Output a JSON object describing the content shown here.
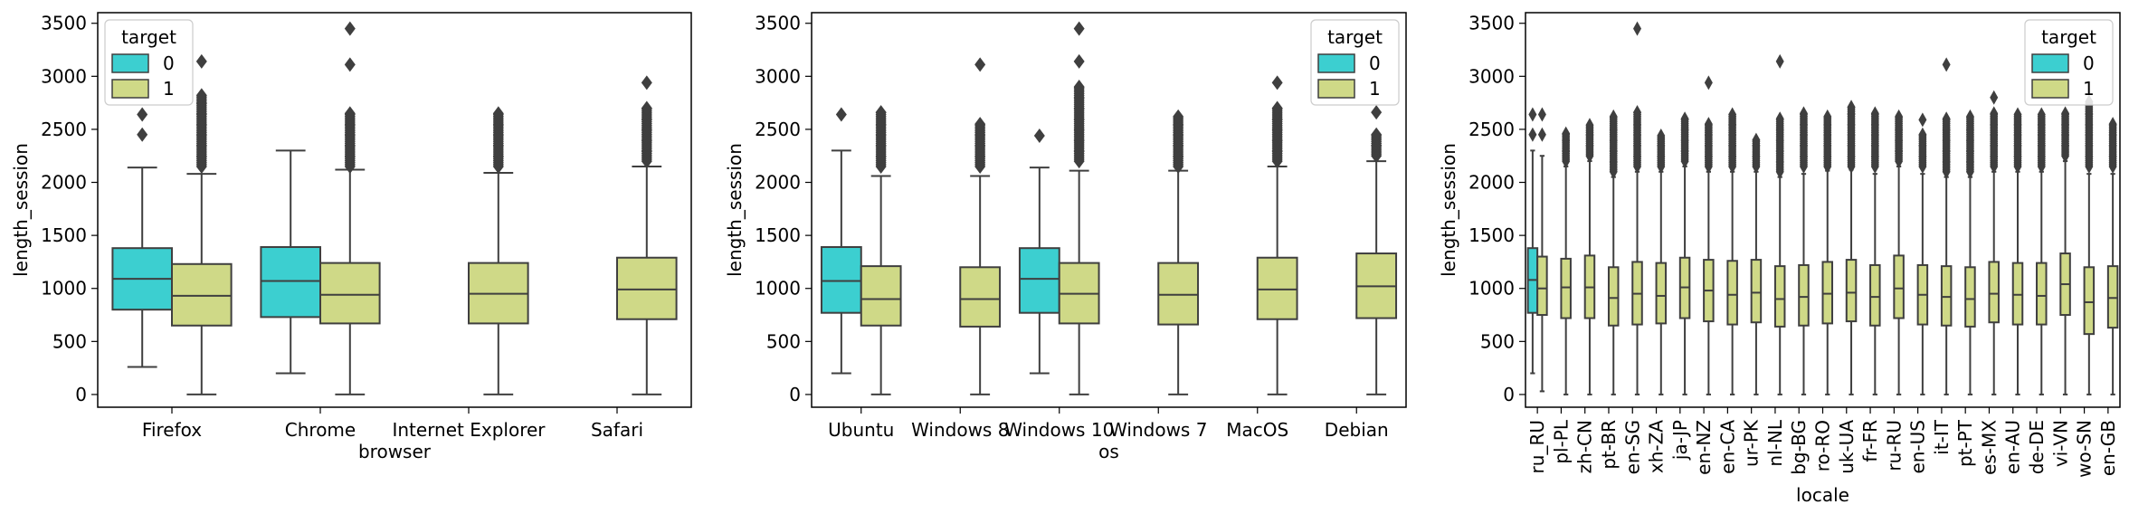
{
  "colors": {
    "0": "#3ccfd0",
    "1": "#cfd987",
    "line": "#3f3f3f"
  },
  "chart_data": [
    {
      "type": "box",
      "xlabel": "browser",
      "ylabel": "length_session",
      "ylim": [
        -120,
        3600
      ],
      "yticks": [
        0,
        500,
        1000,
        1500,
        2000,
        2500,
        3000,
        3500
      ],
      "legend": {
        "title": "target",
        "entries": [
          "0",
          "1"
        ],
        "position": "top-left"
      },
      "categories": [
        "Firefox",
        "Chrome",
        "Internet Explorer",
        "Safari"
      ],
      "boxes": [
        {
          "category": "Firefox",
          "target": "0",
          "whislo": 260,
          "q1": 800,
          "med": 1090,
          "q3": 1380,
          "whishi": 2140,
          "fliers": [
            2450,
            2640
          ]
        },
        {
          "category": "Firefox",
          "target": "1",
          "whislo": 0,
          "q1": 650,
          "med": 930,
          "q3": 1230,
          "whishi": 2080,
          "fliers": [
            2150,
            2250,
            2350,
            2450,
            2550,
            2650,
            2750,
            2820,
            3140
          ]
        },
        {
          "category": "Chrome",
          "target": "0",
          "whislo": 200,
          "q1": 730,
          "med": 1070,
          "q3": 1390,
          "whishi": 2300,
          "fliers": []
        },
        {
          "category": "Chrome",
          "target": "1",
          "whislo": 0,
          "q1": 670,
          "med": 940,
          "q3": 1240,
          "whishi": 2120,
          "fliers": [
            2150,
            2250,
            2350,
            2450,
            2550,
            2650,
            3110,
            3450
          ]
        },
        {
          "category": "Internet Explorer",
          "target": "1",
          "whislo": 0,
          "q1": 670,
          "med": 950,
          "q3": 1240,
          "whishi": 2090,
          "fliers": [
            2150,
            2250,
            2350,
            2450,
            2550,
            2650
          ]
        },
        {
          "category": "Safari",
          "target": "1",
          "whislo": 0,
          "q1": 710,
          "med": 990,
          "q3": 1290,
          "whishi": 2150,
          "fliers": [
            2200,
            2300,
            2400,
            2500,
            2600,
            2700,
            2940
          ]
        }
      ]
    },
    {
      "type": "box",
      "xlabel": "os",
      "ylabel": "length_session",
      "ylim": [
        -120,
        3600
      ],
      "yticks": [
        0,
        500,
        1000,
        1500,
        2000,
        2500,
        3000,
        3500
      ],
      "legend": {
        "title": "target",
        "entries": [
          "0",
          "1"
        ],
        "position": "top-right"
      },
      "categories": [
        "Ubuntu",
        "Windows 8",
        "Windows 10",
        "Windows 7",
        "MacOS",
        "Debian"
      ],
      "boxes": [
        {
          "category": "Ubuntu",
          "target": "0",
          "whislo": 200,
          "q1": 770,
          "med": 1070,
          "q3": 1390,
          "whishi": 2300,
          "fliers": [
            2640
          ]
        },
        {
          "category": "Ubuntu",
          "target": "1",
          "whislo": 0,
          "q1": 650,
          "med": 900,
          "q3": 1210,
          "whishi": 2060,
          "fliers": [
            2150,
            2250,
            2350,
            2450,
            2550,
            2660
          ]
        },
        {
          "category": "Windows 8",
          "target": "1",
          "whislo": 0,
          "q1": 640,
          "med": 900,
          "q3": 1200,
          "whishi": 2060,
          "fliers": [
            2150,
            2250,
            2350,
            2450,
            2550,
            3110
          ]
        },
        {
          "category": "Windows 10",
          "target": "0",
          "whislo": 200,
          "q1": 770,
          "med": 1090,
          "q3": 1380,
          "whishi": 2140,
          "fliers": [
            2440
          ]
        },
        {
          "category": "Windows 10",
          "target": "1",
          "whislo": 0,
          "q1": 670,
          "med": 950,
          "q3": 1240,
          "whishi": 2110,
          "fliers": [
            2200,
            2300,
            2400,
            2500,
            2600,
            2700,
            2800,
            2900,
            3140,
            3450
          ]
        },
        {
          "category": "Windows 7",
          "target": "1",
          "whislo": 0,
          "q1": 660,
          "med": 940,
          "q3": 1240,
          "whishi": 2110,
          "fliers": [
            2150,
            2250,
            2350,
            2450,
            2550,
            2620
          ]
        },
        {
          "category": "MacOS",
          "target": "1",
          "whislo": 0,
          "q1": 710,
          "med": 990,
          "q3": 1290,
          "whishi": 2150,
          "fliers": [
            2200,
            2300,
            2400,
            2500,
            2600,
            2700,
            2940
          ]
        },
        {
          "category": "Debian",
          "target": "1",
          "whislo": 0,
          "q1": 720,
          "med": 1020,
          "q3": 1330,
          "whishi": 2200,
          "fliers": [
            2250,
            2350,
            2450,
            2660
          ]
        }
      ]
    },
    {
      "type": "box",
      "xlabel": "locale",
      "ylabel": "length_session",
      "ylim": [
        -120,
        3600
      ],
      "yticks": [
        0,
        500,
        1000,
        1500,
        2000,
        2500,
        3000,
        3500
      ],
      "legend": {
        "title": "target",
        "entries": [
          "0",
          "1"
        ],
        "position": "top-right"
      },
      "categories": [
        "ru_RU",
        "pl-PL",
        "zh-CN",
        "pt-BR",
        "en-SG",
        "xh-ZA",
        "ja-JP",
        "en-NZ",
        "en-CA",
        "ur-PK",
        "nl-NL",
        "bg-BG",
        "ro-RO",
        "uk-UA",
        "fr-FR",
        "ru-RU",
        "en-US",
        "it-IT",
        "pt-PT",
        "es-MX",
        "en-AU",
        "de-DE",
        "vi-VN",
        "wo-SN",
        "en-GB"
      ],
      "boxes": [
        {
          "category": "ru_RU",
          "target": "0",
          "whislo": 200,
          "q1": 770,
          "med": 1080,
          "q3": 1380,
          "whishi": 2300,
          "fliers": [
            2450,
            2640
          ]
        },
        {
          "category": "ru_RU",
          "target": "1",
          "whislo": 30,
          "q1": 750,
          "med": 1000,
          "q3": 1300,
          "whishi": 2250,
          "fliers": [
            2450,
            2640
          ]
        },
        {
          "category": "pl-PL",
          "target": "1",
          "whislo": 0,
          "q1": 720,
          "med": 1010,
          "q3": 1280,
          "whishi": 2150,
          "fliers": [
            2200,
            2300,
            2400,
            2460
          ]
        },
        {
          "category": "zh-CN",
          "target": "1",
          "whislo": 0,
          "q1": 720,
          "med": 1010,
          "q3": 1310,
          "whishi": 2200,
          "fliers": [
            2250,
            2350,
            2450,
            2540
          ]
        },
        {
          "category": "pt-BR",
          "target": "1",
          "whislo": 0,
          "q1": 650,
          "med": 910,
          "q3": 1200,
          "whishi": 2050,
          "fliers": [
            2100,
            2200,
            2300,
            2400,
            2500,
            2620
          ]
        },
        {
          "category": "en-SG",
          "target": "1",
          "whislo": 0,
          "q1": 660,
          "med": 950,
          "q3": 1250,
          "whishi": 2100,
          "fliers": [
            2150,
            2250,
            2350,
            2450,
            2550,
            2660,
            3450
          ]
        },
        {
          "category": "xh-ZA",
          "target": "1",
          "whislo": 0,
          "q1": 670,
          "med": 930,
          "q3": 1240,
          "whishi": 2100,
          "fliers": [
            2150,
            2250,
            2350,
            2440
          ]
        },
        {
          "category": "ja-JP",
          "target": "1",
          "whislo": 0,
          "q1": 720,
          "med": 1010,
          "q3": 1290,
          "whishi": 2150,
          "fliers": [
            2200,
            2300,
            2400,
            2500,
            2600
          ]
        },
        {
          "category": "en-NZ",
          "target": "1",
          "whislo": 0,
          "q1": 690,
          "med": 980,
          "q3": 1270,
          "whishi": 2100,
          "fliers": [
            2150,
            2250,
            2350,
            2450,
            2550,
            2940
          ]
        },
        {
          "category": "en-CA",
          "target": "1",
          "whislo": 0,
          "q1": 660,
          "med": 940,
          "q3": 1260,
          "whishi": 2100,
          "fliers": [
            2150,
            2250,
            2350,
            2450,
            2550,
            2640
          ]
        },
        {
          "category": "ur-PK",
          "target": "1",
          "whislo": 0,
          "q1": 680,
          "med": 960,
          "q3": 1270,
          "whishi": 2100,
          "fliers": [
            2150,
            2250,
            2350,
            2400
          ]
        },
        {
          "category": "nl-NL",
          "target": "1",
          "whislo": 0,
          "q1": 640,
          "med": 900,
          "q3": 1210,
          "whishi": 2050,
          "fliers": [
            2100,
            2200,
            2300,
            2400,
            2500,
            2600,
            3140
          ]
        },
        {
          "category": "bg-BG",
          "target": "1",
          "whislo": 0,
          "q1": 650,
          "med": 920,
          "q3": 1220,
          "whishi": 2080,
          "fliers": [
            2150,
            2250,
            2350,
            2450,
            2550,
            2650
          ]
        },
        {
          "category": "ro-RO",
          "target": "1",
          "whislo": 0,
          "q1": 670,
          "med": 950,
          "q3": 1250,
          "whishi": 2110,
          "fliers": [
            2150,
            2250,
            2350,
            2450,
            2550,
            2620
          ]
        },
        {
          "category": "uk-UA",
          "target": "1",
          "whislo": 0,
          "q1": 690,
          "med": 960,
          "q3": 1270,
          "whishi": 2120,
          "fliers": [
            2150,
            2250,
            2350,
            2450,
            2550,
            2650,
            2710
          ]
        },
        {
          "category": "fr-FR",
          "target": "1",
          "whislo": 0,
          "q1": 650,
          "med": 920,
          "q3": 1220,
          "whishi": 2080,
          "fliers": [
            2150,
            2250,
            2350,
            2450,
            2550,
            2650
          ]
        },
        {
          "category": "ru-RU",
          "target": "1",
          "whislo": 0,
          "q1": 720,
          "med": 1000,
          "q3": 1310,
          "whishi": 2150,
          "fliers": [
            2200,
            2300,
            2400,
            2500,
            2620
          ]
        },
        {
          "category": "en-US",
          "target": "1",
          "whislo": 0,
          "q1": 660,
          "med": 940,
          "q3": 1220,
          "whishi": 2080,
          "fliers": [
            2150,
            2250,
            2350,
            2450,
            2590
          ]
        },
        {
          "category": "it-IT",
          "target": "1",
          "whislo": 0,
          "q1": 650,
          "med": 920,
          "q3": 1210,
          "whishi": 2050,
          "fliers": [
            2100,
            2200,
            2300,
            2400,
            2500,
            2600,
            3110
          ]
        },
        {
          "category": "pt-PT",
          "target": "1",
          "whislo": 0,
          "q1": 640,
          "med": 900,
          "q3": 1200,
          "whishi": 2050,
          "fliers": [
            2100,
            2200,
            2300,
            2400,
            2500,
            2620
          ]
        },
        {
          "category": "es-MX",
          "target": "1",
          "whislo": 0,
          "q1": 680,
          "med": 950,
          "q3": 1250,
          "whishi": 2100,
          "fliers": [
            2150,
            2250,
            2350,
            2450,
            2550,
            2650,
            2800
          ]
        },
        {
          "category": "en-AU",
          "target": "1",
          "whislo": 0,
          "q1": 660,
          "med": 940,
          "q3": 1240,
          "whishi": 2100,
          "fliers": [
            2150,
            2250,
            2350,
            2450,
            2550,
            2640
          ]
        },
        {
          "category": "de-DE",
          "target": "1",
          "whislo": 0,
          "q1": 660,
          "med": 930,
          "q3": 1240,
          "whishi": 2100,
          "fliers": [
            2150,
            2250,
            2350,
            2450,
            2550,
            2640
          ]
        },
        {
          "category": "vi-VN",
          "target": "1",
          "whislo": 0,
          "q1": 750,
          "med": 1040,
          "q3": 1330,
          "whishi": 2200,
          "fliers": [
            2250,
            2350,
            2450,
            2550,
            2650
          ]
        },
        {
          "category": "wo-SN",
          "target": "1",
          "whislo": 0,
          "q1": 570,
          "med": 870,
          "q3": 1200,
          "whishi": 2080,
          "fliers": [
            2150,
            2250,
            2350,
            2450,
            2550,
            2650,
            2760
          ]
        },
        {
          "category": "en-GB",
          "target": "1",
          "whislo": 0,
          "q1": 630,
          "med": 910,
          "q3": 1210,
          "whishi": 2080,
          "fliers": [
            2150,
            2250,
            2350,
            2450,
            2550
          ]
        }
      ]
    }
  ]
}
